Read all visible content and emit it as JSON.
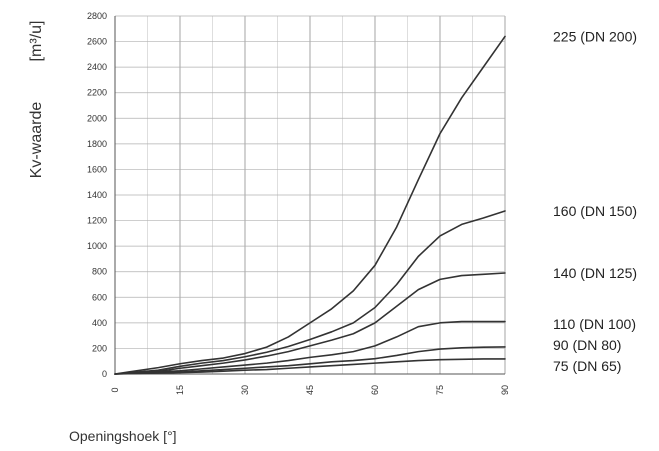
{
  "chart_data": {
    "type": "line",
    "title": "",
    "xlabel": "Openingshoek [°]",
    "ylabel_main": "Kv-waarde",
    "ylabel_unit": "[m³/u]",
    "xlim": [
      0,
      90
    ],
    "ylim": [
      0,
      2800
    ],
    "x_ticks": [
      0,
      15,
      30,
      45,
      60,
      75,
      90
    ],
    "y_ticks": [
      0,
      200,
      400,
      600,
      800,
      1000,
      1200,
      1400,
      1600,
      1800,
      2000,
      2200,
      2400,
      2600,
      2800
    ],
    "grid": true,
    "legend": "right, labels at line ends",
    "series": [
      {
        "name": "225 (DN 200)",
        "color": "#333333",
        "points": [
          [
            0,
            0
          ],
          [
            5,
            25
          ],
          [
            10,
            50
          ],
          [
            15,
            80
          ],
          [
            20,
            105
          ],
          [
            25,
            125
          ],
          [
            30,
            160
          ],
          [
            35,
            210
          ],
          [
            40,
            290
          ],
          [
            45,
            400
          ],
          [
            50,
            510
          ],
          [
            55,
            650
          ],
          [
            60,
            850
          ],
          [
            65,
            1150
          ],
          [
            70,
            1520
          ],
          [
            75,
            1880
          ],
          [
            80,
            2160
          ],
          [
            85,
            2400
          ],
          [
            90,
            2640
          ]
        ]
      },
      {
        "name": "160 (DN 150)",
        "color": "#333333",
        "points": [
          [
            0,
            0
          ],
          [
            10,
            30
          ],
          [
            15,
            60
          ],
          [
            20,
            85
          ],
          [
            25,
            105
          ],
          [
            30,
            135
          ],
          [
            35,
            170
          ],
          [
            40,
            215
          ],
          [
            45,
            270
          ],
          [
            50,
            330
          ],
          [
            55,
            400
          ],
          [
            60,
            520
          ],
          [
            65,
            700
          ],
          [
            70,
            920
          ],
          [
            75,
            1080
          ],
          [
            80,
            1170
          ],
          [
            85,
            1220
          ],
          [
            90,
            1275
          ]
        ]
      },
      {
        "name": "140 (DN 125)",
        "color": "#333333",
        "points": [
          [
            0,
            0
          ],
          [
            10,
            20
          ],
          [
            15,
            45
          ],
          [
            20,
            65
          ],
          [
            25,
            85
          ],
          [
            30,
            110
          ],
          [
            35,
            140
          ],
          [
            40,
            175
          ],
          [
            45,
            220
          ],
          [
            50,
            265
          ],
          [
            55,
            315
          ],
          [
            60,
            400
          ],
          [
            65,
            530
          ],
          [
            70,
            660
          ],
          [
            75,
            740
          ],
          [
            80,
            770
          ],
          [
            85,
            780
          ],
          [
            90,
            790
          ]
        ]
      },
      {
        "name": "110 (DN 100)",
        "color": "#333333",
        "points": [
          [
            0,
            0
          ],
          [
            15,
            25
          ],
          [
            20,
            40
          ],
          [
            25,
            55
          ],
          [
            30,
            70
          ],
          [
            35,
            85
          ],
          [
            40,
            105
          ],
          [
            45,
            130
          ],
          [
            50,
            150
          ],
          [
            55,
            175
          ],
          [
            60,
            220
          ],
          [
            65,
            290
          ],
          [
            70,
            370
          ],
          [
            75,
            400
          ],
          [
            80,
            410
          ],
          [
            85,
            410
          ],
          [
            90,
            410
          ]
        ]
      },
      {
        "name": "90 (DN 80)",
        "color": "#333333",
        "points": [
          [
            0,
            0
          ],
          [
            15,
            15
          ],
          [
            20,
            25
          ],
          [
            25,
            35
          ],
          [
            30,
            45
          ],
          [
            35,
            55
          ],
          [
            40,
            65
          ],
          [
            45,
            80
          ],
          [
            50,
            95
          ],
          [
            55,
            105
          ],
          [
            60,
            120
          ],
          [
            65,
            145
          ],
          [
            70,
            175
          ],
          [
            75,
            195
          ],
          [
            80,
            205
          ],
          [
            85,
            210
          ],
          [
            90,
            212
          ]
        ]
      },
      {
        "name": "75 (DN 65)",
        "color": "#333333",
        "points": [
          [
            0,
            0
          ],
          [
            20,
            15
          ],
          [
            25,
            22
          ],
          [
            30,
            30
          ],
          [
            35,
            35
          ],
          [
            40,
            45
          ],
          [
            45,
            55
          ],
          [
            50,
            65
          ],
          [
            55,
            75
          ],
          [
            60,
            85
          ],
          [
            65,
            95
          ],
          [
            70,
            105
          ],
          [
            75,
            112
          ],
          [
            80,
            115
          ],
          [
            85,
            118
          ],
          [
            90,
            118
          ]
        ]
      }
    ]
  }
}
